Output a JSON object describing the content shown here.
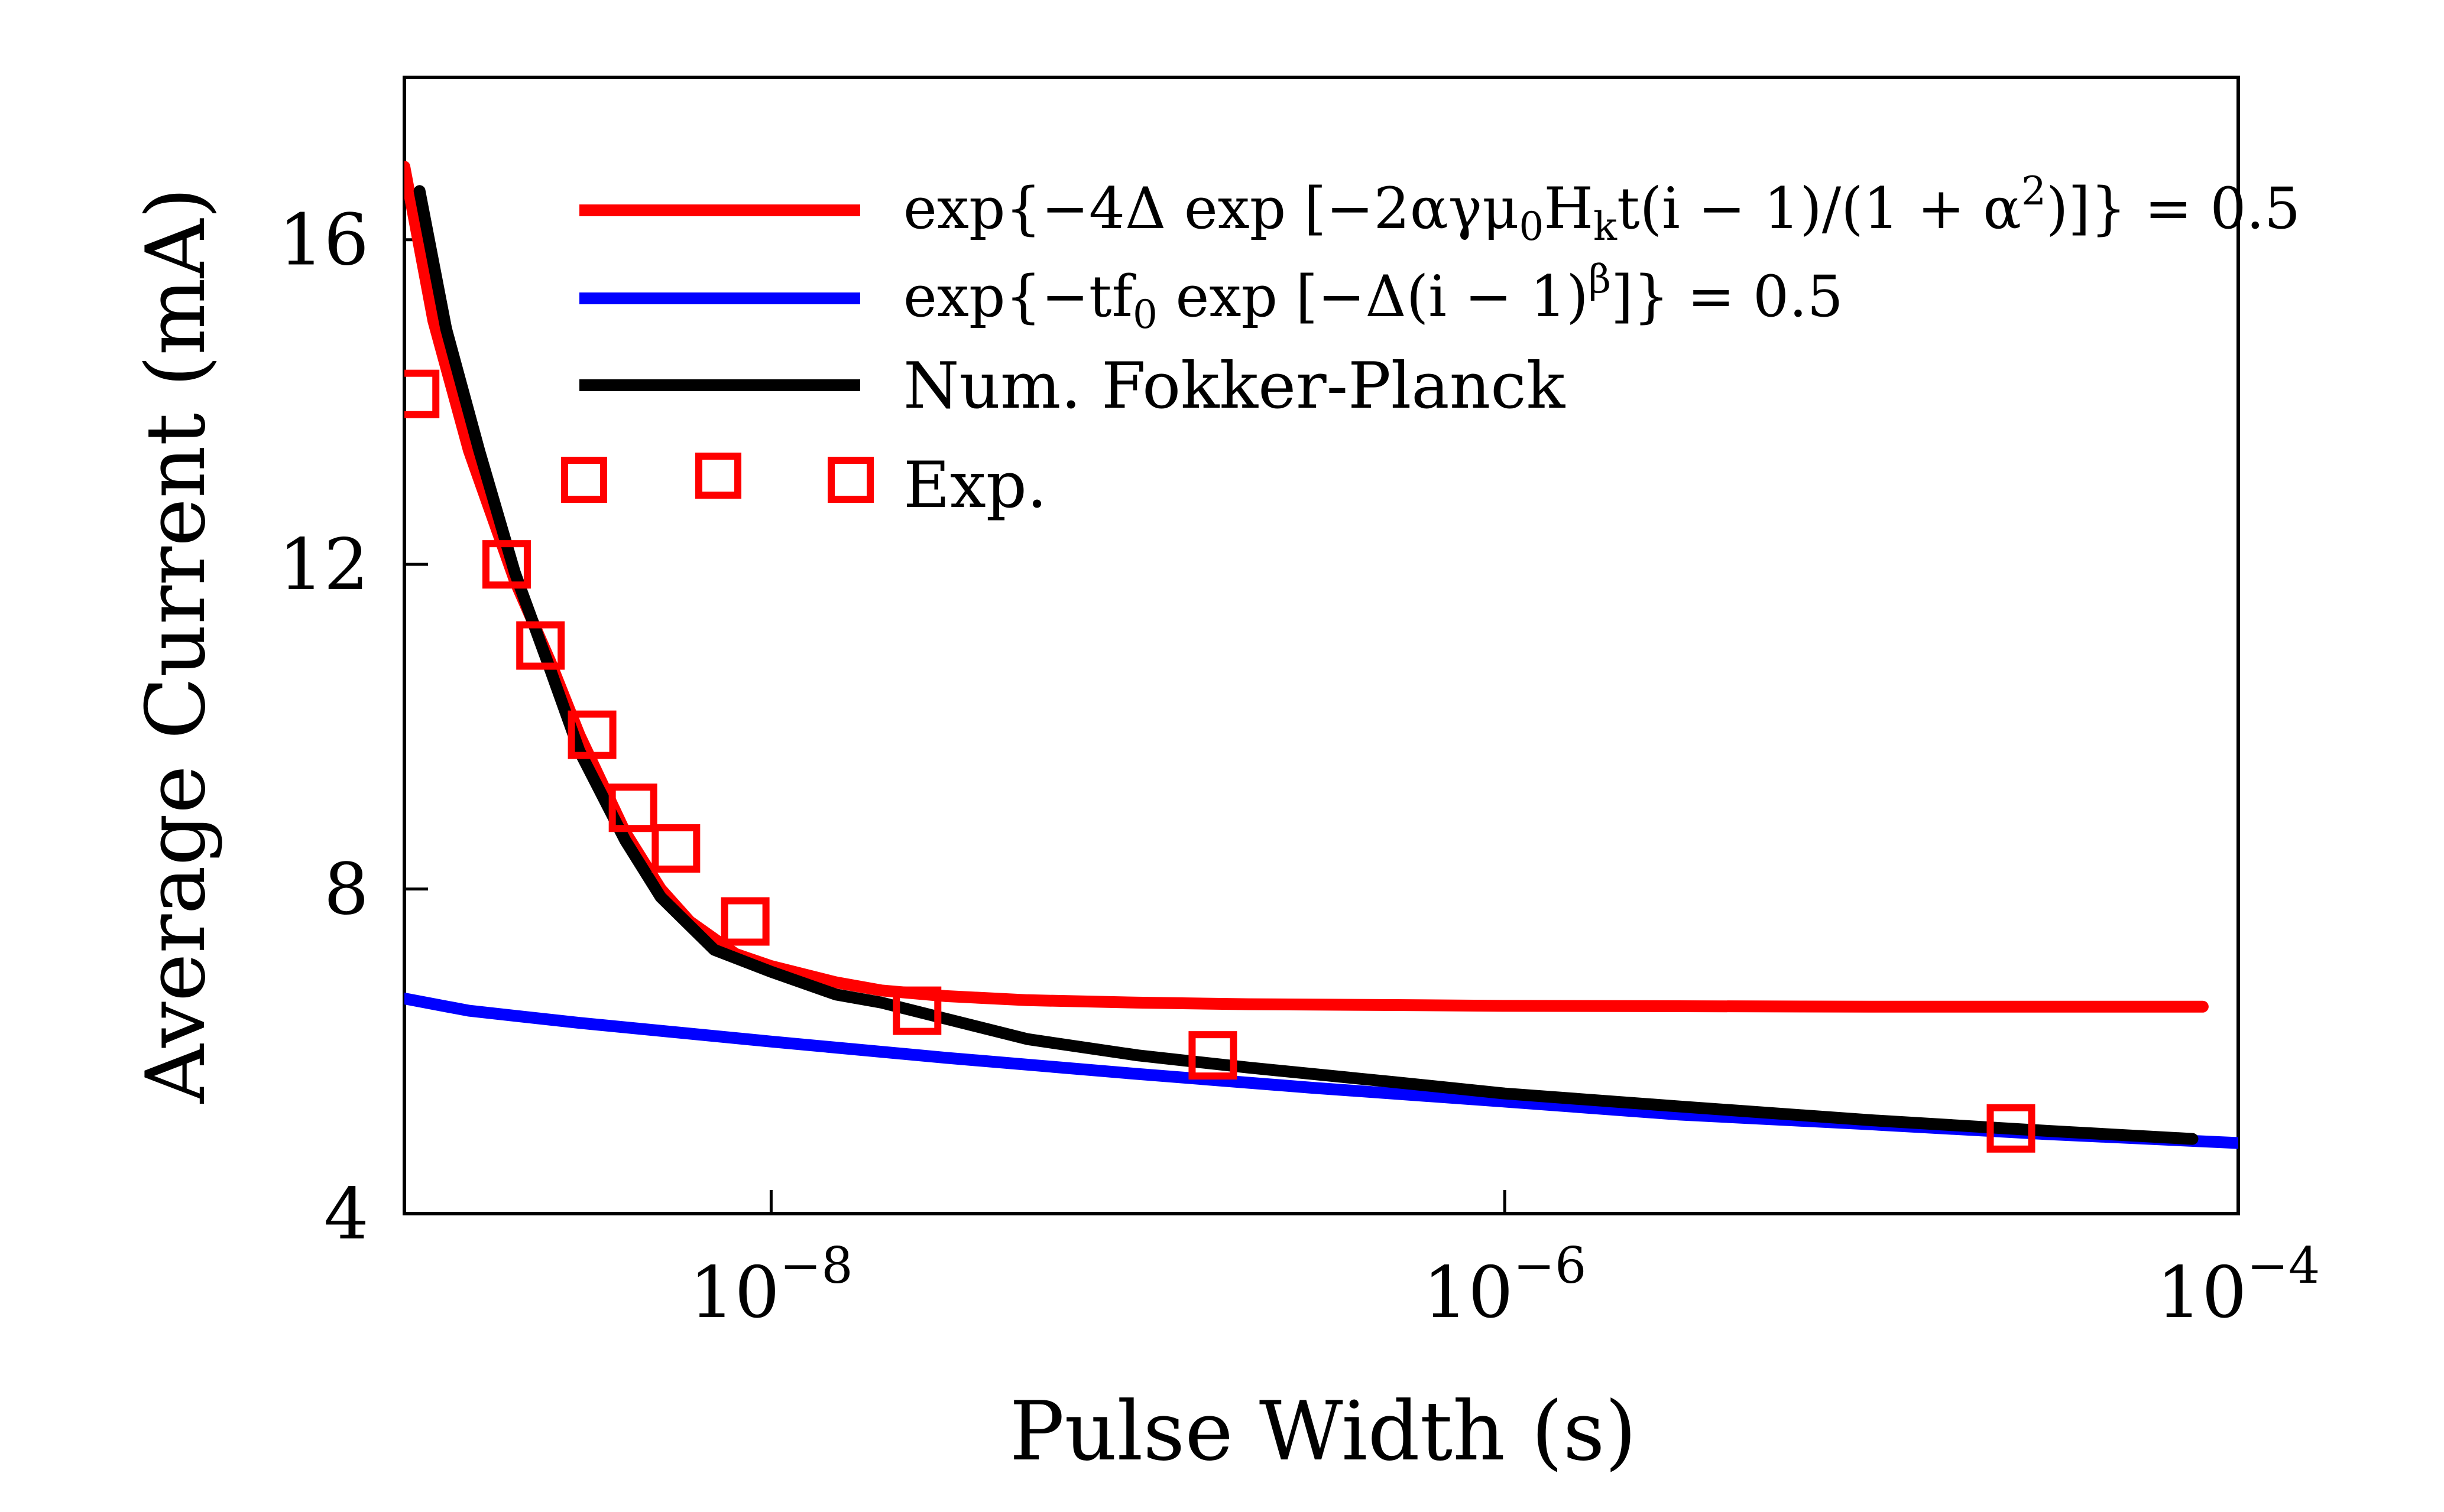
{
  "chart_data": {
    "type": "line",
    "xlabel": "Pulse Width (s)",
    "ylabel": "Average Current (mA)",
    "xscale": "log",
    "xlim": [
      1e-09,
      0.0001
    ],
    "ylim": [
      4,
      18
    ],
    "yticks": [
      4,
      8,
      12,
      16
    ],
    "xticks": [
      1e-08,
      1e-06,
      0.0001
    ],
    "xtick_labels": [
      {
        "base": "10",
        "exp": "−8"
      },
      {
        "base": "10",
        "exp": "−6"
      },
      {
        "base": "10",
        "exp": "−4"
      }
    ],
    "legend_position": "top-right",
    "series": [
      {
        "name": "exp{−4Δ exp [−2αγμ₀Hₖt(i − 1)/(1 + α²)]} = 0.5",
        "kind": "line",
        "color": "#ff0000",
        "x": [
          1e-09,
          1.2e-09,
          1.5e-09,
          2e-09,
          2.5e-09,
          3e-09,
          4e-09,
          5e-09,
          6e-09,
          8e-09,
          1e-08,
          1.5e-08,
          2e-08,
          3e-08,
          5e-08,
          1e-07,
          2e-07,
          5e-07,
          1e-06,
          1e-05,
          8e-05
        ],
        "y": [
          16.9,
          15.0,
          13.4,
          11.8,
          10.8,
          9.9,
          8.7,
          8.0,
          7.6,
          7.2,
          7.05,
          6.85,
          6.75,
          6.68,
          6.63,
          6.6,
          6.58,
          6.57,
          6.56,
          6.55,
          6.55
        ]
      },
      {
        "name": "exp{−t f₀ exp [−Δ(i − 1)^β]} = 0.5",
        "kind": "line",
        "color": "#0000ff",
        "x": [
          1e-09,
          1.5e-09,
          3e-09,
          1e-08,
          3e-08,
          1e-07,
          3e-07,
          1e-06,
          3e-06,
          1e-05,
          3e-05,
          0.0001
        ],
        "y": [
          6.65,
          6.5,
          6.35,
          6.12,
          5.92,
          5.72,
          5.55,
          5.38,
          5.22,
          5.1,
          4.98,
          4.87
        ]
      },
      {
        "name": "Num. Fokker-Planck",
        "kind": "line",
        "color": "#000000",
        "x": [
          1.1e-09,
          1.3e-09,
          1.6e-09,
          2e-09,
          2.5e-09,
          3e-09,
          4e-09,
          5e-09,
          7e-09,
          1e-08,
          1.5e-08,
          2e-08,
          3e-08,
          5e-08,
          1e-07,
          2e-07,
          5e-07,
          1e-06,
          3e-06,
          1e-05,
          3e-05,
          7.5e-05
        ],
        "y": [
          16.6,
          14.9,
          13.4,
          11.9,
          10.7,
          9.7,
          8.6,
          7.9,
          7.25,
          6.98,
          6.7,
          6.6,
          6.4,
          6.15,
          5.95,
          5.8,
          5.62,
          5.48,
          5.32,
          5.15,
          5.02,
          4.92
        ]
      },
      {
        "name": "Exp.",
        "kind": "markers",
        "marker": "square",
        "color": "#ff0000",
        "x": [
          1.07e-09,
          1.9e-09,
          2.35e-09,
          3.25e-09,
          4.2e-09,
          5.5e-09,
          8.5e-09,
          2.5e-08,
          1.6e-07,
          2.4e-05
        ],
        "y": [
          14.1,
          12.0,
          11.0,
          9.9,
          9.0,
          8.5,
          7.6,
          6.5,
          5.95,
          5.05
        ]
      }
    ]
  }
}
